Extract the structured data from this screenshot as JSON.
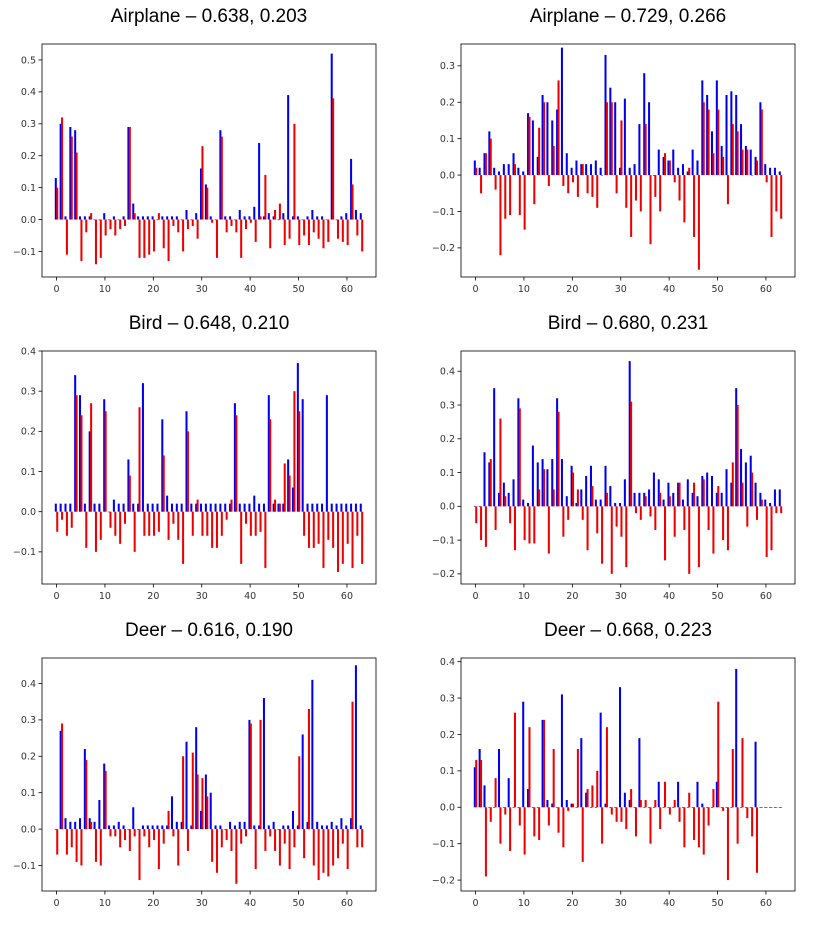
{
  "colors": {
    "blue": "#0000ee",
    "red": "#ee0000",
    "axis": "#000000"
  },
  "chart_data": [
    {
      "type": "bar",
      "title": "Airplane – 0.638, 0.203",
      "xlim": [
        -3,
        66
      ],
      "ylim": [
        -0.18,
        0.55
      ],
      "xticks": [
        0,
        10,
        20,
        30,
        40,
        50,
        60
      ],
      "yticks": [
        -0.1,
        0.0,
        0.1,
        0.2,
        0.3,
        0.4,
        0.5
      ],
      "ytick_labels": [
        "−0.1",
        "0.0",
        "0.1",
        "0.2",
        "0.3",
        "0.4",
        "0.5"
      ],
      "series": [
        {
          "name": "blue",
          "color": "blue",
          "values": [
            0.13,
            0.3,
            0.01,
            0.29,
            0.28,
            0.01,
            0.01,
            0.01,
            0.0,
            0.0,
            0.02,
            0.0,
            0.01,
            0.0,
            0.01,
            0.29,
            0.05,
            0.01,
            0.01,
            0.01,
            0.01,
            0.0,
            0.01,
            0.01,
            0.01,
            0.01,
            0.0,
            0.03,
            0.0,
            0.02,
            0.16,
            0.11,
            0.01,
            0.0,
            0.28,
            0.01,
            0.01,
            0.0,
            0.03,
            0.01,
            0.01,
            0.04,
            0.24,
            0.01,
            0.02,
            0.01,
            0.0,
            0.02,
            0.39,
            0.01,
            0.01,
            0.0,
            0.01,
            0.03,
            0.01,
            0.01,
            0.0,
            0.52,
            0.0,
            0.01,
            0.02,
            0.19,
            0.03,
            0.02
          ]
        },
        {
          "name": "red",
          "color": "red",
          "values": [
            0.1,
            0.32,
            -0.11,
            0.26,
            0.21,
            -0.13,
            -0.04,
            0.02,
            -0.14,
            -0.12,
            -0.05,
            -0.03,
            -0.05,
            -0.03,
            -0.02,
            0.29,
            0.02,
            -0.12,
            -0.12,
            -0.11,
            -0.1,
            0.02,
            -0.09,
            -0.13,
            -0.02,
            -0.04,
            -0.1,
            -0.03,
            -0.02,
            -0.06,
            0.23,
            0.1,
            -0.01,
            -0.12,
            0.26,
            -0.04,
            -0.02,
            -0.04,
            -0.12,
            -0.03,
            -0.01,
            -0.07,
            0.01,
            0.14,
            -0.09,
            0.03,
            0.05,
            -0.08,
            -0.06,
            0.3,
            -0.08,
            -0.05,
            -0.08,
            -0.04,
            -0.06,
            -0.09,
            -0.07,
            0.38,
            -0.06,
            -0.07,
            -0.08,
            0.11,
            -0.05,
            -0.1
          ]
        }
      ]
    },
    {
      "type": "bar",
      "title": "Airplane – 0.729, 0.266",
      "xlim": [
        -3,
        66
      ],
      "ylim": [
        -0.28,
        0.36
      ],
      "xticks": [
        0,
        10,
        20,
        30,
        40,
        50,
        60
      ],
      "yticks": [
        -0.2,
        -0.1,
        0.0,
        0.1,
        0.2,
        0.3
      ],
      "ytick_labels": [
        "−0.2",
        "−0.1",
        "0.0",
        "0.1",
        "0.2",
        "0.3"
      ],
      "series": [
        {
          "name": "blue",
          "color": "blue",
          "values": [
            0.04,
            0.02,
            0.06,
            0.12,
            0.02,
            0.01,
            0.03,
            0.03,
            0.06,
            0.02,
            0.01,
            0.17,
            0.15,
            0.05,
            0.22,
            0.2,
            0.15,
            0.18,
            0.35,
            0.06,
            0.02,
            0.04,
            0.03,
            0.03,
            0.03,
            0.04,
            0.02,
            0.33,
            0.24,
            0.2,
            0.02,
            0.21,
            0.02,
            0.03,
            0.14,
            0.28,
            0.2,
            0.0,
            0.07,
            0.05,
            0.04,
            0.07,
            0.02,
            0.03,
            0.01,
            0.07,
            0.04,
            0.26,
            0.22,
            0.12,
            0.26,
            0.08,
            0.22,
            0.23,
            0.22,
            0.14,
            0.08,
            0.07,
            0.05,
            0.2,
            0.03,
            0.02,
            0.02,
            0.01
          ]
        },
        {
          "name": "red",
          "color": "red",
          "values": [
            0.02,
            -0.05,
            0.06,
            0.1,
            -0.04,
            -0.22,
            -0.12,
            -0.11,
            0.03,
            -0.11,
            -0.15,
            0.16,
            -0.08,
            0.13,
            0.2,
            -0.03,
            0.08,
            0.26,
            -0.03,
            -0.05,
            -0.02,
            -0.06,
            0.03,
            -0.05,
            -0.06,
            -0.09,
            0.0,
            0.2,
            0.2,
            -0.05,
            0.15,
            -0.09,
            -0.17,
            -0.07,
            -0.1,
            0.14,
            -0.19,
            -0.06,
            -0.1,
            0.06,
            0.04,
            -0.02,
            -0.07,
            -0.13,
            0.02,
            -0.17,
            -0.26,
            0.2,
            0.18,
            0.06,
            0.18,
            0.05,
            -0.08,
            0.14,
            0.12,
            0.07,
            0.07,
            0.0,
            0.04,
            0.18,
            -0.02,
            -0.17,
            -0.1,
            -0.12
          ]
        }
      ]
    },
    {
      "type": "bar",
      "title": "Bird – 0.648, 0.210",
      "xlim": [
        -3,
        66
      ],
      "ylim": [
        -0.18,
        0.4
      ],
      "xticks": [
        0,
        10,
        20,
        30,
        40,
        50,
        60
      ],
      "yticks": [
        -0.1,
        0.0,
        0.1,
        0.2,
        0.3,
        0.4
      ],
      "ytick_labels": [
        "−0.1",
        "0.0",
        "0.1",
        "0.2",
        "0.3",
        "0.4"
      ],
      "series": [
        {
          "name": "blue",
          "color": "blue",
          "values": [
            0.02,
            0.02,
            0.02,
            0.02,
            0.34,
            0.29,
            0.02,
            0.2,
            0.02,
            0.02,
            0.28,
            0.0,
            0.03,
            0.02,
            0.02,
            0.13,
            0.02,
            0.02,
            0.32,
            0.02,
            0.02,
            0.02,
            0.23,
            0.04,
            0.02,
            0.02,
            0.02,
            0.25,
            0.02,
            0.02,
            0.02,
            0.02,
            0.02,
            0.02,
            0.02,
            0.02,
            0.02,
            0.27,
            0.02,
            0.02,
            0.02,
            0.04,
            0.02,
            0.02,
            0.29,
            0.02,
            0.02,
            0.02,
            0.13,
            0.06,
            0.37,
            0.28,
            0.02,
            0.02,
            0.02,
            0.02,
            0.29,
            0.02,
            0.02,
            0.02,
            0.02,
            0.02,
            0.02,
            0.02
          ]
        },
        {
          "name": "red",
          "color": "red",
          "values": [
            -0.05,
            -0.02,
            -0.06,
            -0.04,
            0.29,
            0.24,
            -0.09,
            0.27,
            -0.1,
            -0.07,
            0.25,
            -0.04,
            -0.06,
            -0.08,
            -0.03,
            0.09,
            -0.1,
            0.26,
            -0.06,
            -0.06,
            -0.06,
            -0.05,
            0.14,
            -0.07,
            -0.03,
            -0.07,
            -0.13,
            0.2,
            -0.06,
            0.03,
            -0.06,
            -0.06,
            -0.09,
            -0.09,
            -0.06,
            -0.02,
            0.03,
            0.24,
            -0.13,
            -0.03,
            -0.06,
            -0.06,
            -0.05,
            -0.14,
            0.23,
            0.03,
            0.02,
            0.12,
            0.09,
            0.3,
            0.25,
            -0.06,
            -0.09,
            -0.09,
            -0.08,
            -0.14,
            -0.07,
            -0.09,
            -0.15,
            -0.13,
            -0.08,
            -0.14,
            -0.06,
            -0.13
          ]
        }
      ]
    },
    {
      "type": "bar",
      "title": "Bird – 0.680, 0.231",
      "xlim": [
        -3,
        66
      ],
      "ylim": [
        -0.23,
        0.46
      ],
      "xticks": [
        0,
        10,
        20,
        30,
        40,
        50,
        60
      ],
      "yticks": [
        -0.2,
        -0.1,
        0.0,
        0.1,
        0.2,
        0.3,
        0.4
      ],
      "ytick_labels": [
        "−0.2",
        "−0.1",
        "0.0",
        "0.1",
        "0.2",
        "0.3",
        "0.4"
      ],
      "series": [
        {
          "name": "blue",
          "color": "blue",
          "values": [
            0.0,
            0.0,
            0.16,
            0.13,
            0.35,
            0.04,
            0.07,
            0.04,
            0.08,
            0.32,
            0.02,
            0.01,
            0.18,
            0.13,
            0.14,
            0.11,
            0.14,
            0.32,
            0.14,
            0.03,
            0.12,
            0.01,
            0.05,
            0.09,
            0.12,
            0.02,
            0.02,
            0.12,
            0.06,
            0.01,
            0.01,
            0.08,
            0.43,
            0.04,
            0.04,
            0.04,
            0.05,
            0.1,
            0.08,
            0.02,
            0.07,
            0.04,
            0.07,
            0.02,
            0.08,
            0.04,
            0.03,
            0.09,
            0.1,
            0.09,
            0.04,
            0.04,
            0.11,
            0.07,
            0.35,
            0.17,
            0.13,
            0.15,
            0.07,
            0.04,
            0.02,
            0.01,
            0.05,
            0.05
          ]
        },
        {
          "name": "red",
          "color": "red",
          "values": [
            -0.05,
            -0.1,
            -0.12,
            0.14,
            -0.07,
            0.26,
            0.03,
            -0.05,
            -0.13,
            0.29,
            -0.1,
            -0.11,
            -0.11,
            0.05,
            0.11,
            -0.14,
            0.05,
            0.28,
            -0.09,
            -0.04,
            0.1,
            0.05,
            -0.04,
            -0.13,
            0.06,
            -0.08,
            -0.17,
            0.04,
            -0.2,
            -0.06,
            -0.09,
            -0.18,
            0.31,
            -0.02,
            -0.04,
            0.03,
            -0.03,
            -0.07,
            0.04,
            -0.16,
            0.03,
            -0.09,
            0.07,
            -0.07,
            -0.2,
            0.07,
            -0.18,
            0.08,
            -0.07,
            -0.14,
            0.06,
            -0.1,
            -0.13,
            0.13,
            0.3,
            0.07,
            -0.06,
            0.1,
            -0.04,
            0.02,
            -0.15,
            -0.13,
            -0.02,
            -0.02
          ]
        }
      ]
    },
    {
      "type": "bar",
      "title": "Deer – 0.616, 0.190",
      "xlim": [
        -3,
        66
      ],
      "ylim": [
        -0.17,
        0.47
      ],
      "xticks": [
        0,
        10,
        20,
        30,
        40,
        50,
        60
      ],
      "yticks": [
        -0.1,
        0.0,
        0.1,
        0.2,
        0.3,
        0.4
      ],
      "ytick_labels": [
        "−0.1",
        "0.0",
        "0.1",
        "0.2",
        "0.3",
        "0.4"
      ],
      "series": [
        {
          "name": "blue",
          "color": "blue",
          "values": [
            0.0,
            0.27,
            0.03,
            0.02,
            0.02,
            0.03,
            0.22,
            0.03,
            0.02,
            0.08,
            0.18,
            0.01,
            0.01,
            0.02,
            0.01,
            0.0,
            0.06,
            0.0,
            0.01,
            0.01,
            0.01,
            0.01,
            0.01,
            0.01,
            0.09,
            0.02,
            0.02,
            0.24,
            0.01,
            0.28,
            0.05,
            0.15,
            0.1,
            0.01,
            0.01,
            0.0,
            0.02,
            0.01,
            0.02,
            0.02,
            0.3,
            0.01,
            0.01,
            0.36,
            0.01,
            0.02,
            0.0,
            0.01,
            0.01,
            0.05,
            0.01,
            0.26,
            0.02,
            0.41,
            0.02,
            0.01,
            0.01,
            0.02,
            0.01,
            0.03,
            0.01,
            0.03,
            0.45,
            0.01
          ]
        },
        {
          "name": "red",
          "color": "red",
          "values": [
            -0.07,
            0.29,
            -0.07,
            -0.05,
            -0.09,
            -0.1,
            0.19,
            0.02,
            -0.09,
            -0.1,
            0.16,
            -0.02,
            -0.02,
            -0.05,
            -0.03,
            -0.06,
            -0.02,
            -0.14,
            -0.02,
            -0.05,
            -0.03,
            -0.11,
            -0.04,
            0.05,
            -0.02,
            -0.1,
            0.2,
            -0.06,
            0.21,
            0.15,
            0.14,
            0.09,
            -0.09,
            -0.12,
            -0.05,
            -0.03,
            -0.06,
            -0.15,
            -0.04,
            -0.02,
            0.29,
            -0.11,
            0.3,
            -0.06,
            -0.02,
            -0.06,
            -0.1,
            -0.04,
            -0.11,
            -0.05,
            0.2,
            -0.08,
            0.33,
            -0.1,
            -0.14,
            -0.12,
            -0.13,
            -0.1,
            -0.08,
            -0.04,
            -0.11,
            0.35,
            -0.05,
            -0.05
          ]
        }
      ]
    },
    {
      "type": "bar",
      "title": "Deer – 0.668, 0.223",
      "xlim": [
        -3,
        66
      ],
      "ylim": [
        -0.23,
        0.41
      ],
      "xticks": [
        0,
        10,
        20,
        30,
        40,
        50,
        60
      ],
      "yticks": [
        -0.2,
        -0.1,
        0.0,
        0.1,
        0.2,
        0.3,
        0.4
      ],
      "ytick_labels": [
        "−0.2",
        "−0.1",
        "0.0",
        "0.1",
        "0.2",
        "0.3",
        "0.4"
      ],
      "series": [
        {
          "name": "blue",
          "color": "blue",
          "values": [
            0.11,
            0.16,
            0.06,
            0.0,
            0.0,
            0.16,
            0.0,
            0.08,
            0.0,
            0.0,
            0.29,
            0.05,
            0.0,
            0.0,
            0.24,
            0.02,
            0.01,
            0.0,
            0.31,
            0.02,
            0.01,
            0.0,
            0.19,
            0.04,
            0.0,
            0.0,
            0.26,
            0.01,
            0.0,
            0.0,
            0.33,
            0.04,
            0.02,
            0.0,
            0.19,
            0.0,
            0.0,
            0.0,
            0.07,
            0.0,
            0.0,
            0.0,
            0.07,
            0.0,
            0.0,
            0.0,
            0.07,
            0.01,
            0.0,
            0.0,
            0.07,
            0.0,
            0.0,
            0.0,
            0.38,
            0.0,
            0.0,
            0.0,
            0.18,
            0.0,
            0.0,
            0.0,
            0.0,
            0.0
          ]
        },
        {
          "name": "red",
          "color": "red",
          "values": [
            0.13,
            0.13,
            -0.19,
            -0.04,
            0.08,
            -0.1,
            -0.02,
            -0.12,
            0.26,
            -0.05,
            -0.13,
            0.22,
            -0.08,
            -0.09,
            0.24,
            -0.05,
            0.16,
            -0.07,
            -0.11,
            -0.01,
            0.01,
            0.16,
            -0.15,
            0.05,
            0.06,
            0.1,
            -0.1,
            0.22,
            -0.02,
            -0.04,
            -0.04,
            -0.06,
            0.05,
            -0.08,
            0.02,
            0.02,
            -0.1,
            0.02,
            -0.06,
            0.07,
            -0.02,
            0.02,
            -0.04,
            -0.11,
            0.04,
            -0.09,
            -0.11,
            -0.13,
            -0.05,
            0.05,
            0.29,
            -0.01,
            -0.2,
            0.16,
            -0.1,
            0.19,
            -0.03,
            -0.08,
            -0.18,
            0.0,
            0.0,
            0.0,
            0.0,
            0.0
          ]
        }
      ]
    }
  ]
}
